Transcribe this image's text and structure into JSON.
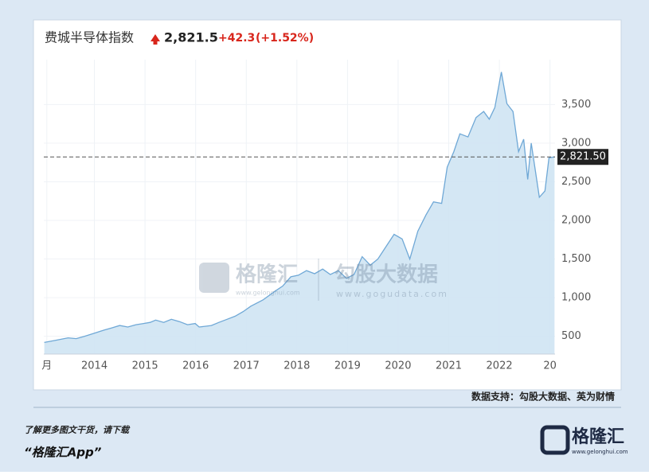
{
  "chart_data": {
    "type": "area",
    "title": "费城半导体指数",
    "price": "2,821.5",
    "change": "+42.3",
    "change_pct": "(+1.52%)",
    "x": [
      2013.01,
      2013.25,
      2013.48,
      2013.64,
      2013.8,
      2014.0,
      2014.19,
      2014.35,
      2014.5,
      2014.66,
      2014.82,
      2014.97,
      2015.1,
      2015.21,
      2015.37,
      2015.52,
      2015.68,
      2015.84,
      2015.99,
      2016.07,
      2016.2,
      2016.31,
      2016.46,
      2016.62,
      2016.78,
      2016.94,
      2017.09,
      2017.33,
      2017.56,
      2017.72,
      2017.88,
      2018.03,
      2018.19,
      2018.35,
      2018.51,
      2018.66,
      2018.82,
      2018.98,
      2019.13,
      2019.29,
      2019.45,
      2019.6,
      2019.76,
      2019.92,
      2020.08,
      2020.23,
      2020.39,
      2020.55,
      2020.7,
      2020.86,
      2020.97,
      2021.1,
      2021.22,
      2021.38,
      2021.54,
      2021.69,
      2021.8,
      2021.91,
      2022.04,
      2022.15,
      2022.27,
      2022.38,
      2022.48,
      2022.56,
      2022.63,
      2022.79,
      2022.9,
      2022.98,
      2023.09
    ],
    "y": [
      420,
      450,
      480,
      470,
      500,
      540,
      580,
      610,
      640,
      620,
      650,
      665,
      680,
      710,
      680,
      720,
      690,
      650,
      665,
      620,
      630,
      640,
      680,
      720,
      760,
      820,
      890,
      970,
      1080,
      1150,
      1270,
      1290,
      1350,
      1310,
      1370,
      1300,
      1350,
      1250,
      1300,
      1530,
      1420,
      1500,
      1660,
      1820,
      1760,
      1500,
      1860,
      2070,
      2240,
      2220,
      2690,
      2890,
      3120,
      3080,
      3330,
      3410,
      3310,
      3460,
      3920,
      3510,
      3410,
      2890,
      3050,
      2530,
      3000,
      2300,
      2380,
      2810,
      2821.5
    ],
    "color": "#6fa8d6",
    "current": {
      "value": 2821.5,
      "label": "2,821.50"
    },
    "xlim": [
      2013.0,
      2023.1
    ],
    "xticks": [
      {
        "value": 2013.06,
        "label": "月"
      },
      2014,
      2015,
      2016,
      2017,
      2018,
      2019,
      2020,
      2021,
      2022,
      {
        "value": 2023,
        "label": "20"
      }
    ],
    "ylim": [
      270,
      4080
    ],
    "yticks": [
      {
        "value": 500,
        "label": "500"
      },
      {
        "value": 1000,
        "label": "1,000"
      },
      {
        "value": 1500,
        "label": "1,500"
      },
      {
        "value": 2000,
        "label": "2,000"
      },
      {
        "value": 2500,
        "label": "2,500"
      },
      {
        "value": 3000,
        "label": "3,000"
      },
      {
        "value": 3500,
        "label": "3,500"
      }
    ],
    "grid": true
  },
  "watermark": {
    "brand": "格隆汇",
    "brand_url": "www.gelonghui.com",
    "data_brand": "勾股大数据",
    "data_url": "www.gogudata.com"
  },
  "source": "数据支持：勾股大数据、英为财情",
  "footer": {
    "line1": "了解更多图文干货，请下载",
    "line2": "“格隆汇App”",
    "logo": "格隆汇",
    "logo_url": "www.gelonghui.com"
  }
}
